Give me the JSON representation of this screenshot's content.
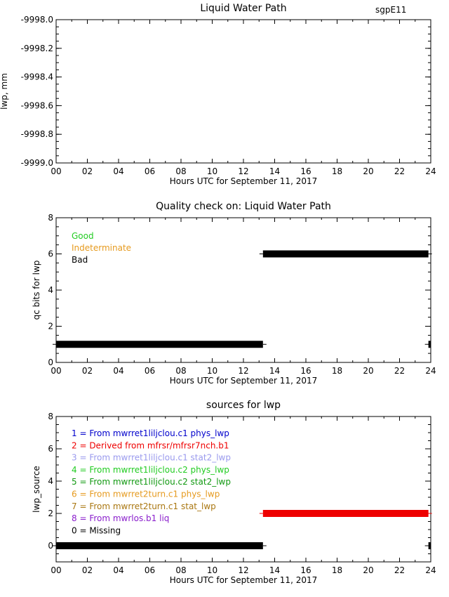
{
  "site": "sgpE11",
  "chart_data": [
    {
      "type": "line",
      "title": "Liquid Water Path",
      "xlabel": "Hours UTC for September 11, 2017",
      "ylabel": "lwp, mm",
      "xlim": [
        0,
        24
      ],
      "ylim": [
        -9999.0,
        -9998.0
      ],
      "x_ticks": [
        "00",
        "02",
        "04",
        "06",
        "08",
        "10",
        "12",
        "14",
        "16",
        "18",
        "20",
        "22",
        "24"
      ],
      "y_ticks": [
        "-9999.0",
        "-9998.8",
        "-9998.6",
        "-9998.4",
        "-9998.2",
        "-9998.0"
      ],
      "series": []
    },
    {
      "type": "bar",
      "title": "Quality check on: Liquid Water Path",
      "xlabel": "Hours UTC for September 11, 2017",
      "ylabel": "qc bits for lwp",
      "xlim": [
        0,
        24
      ],
      "ylim": [
        0,
        8
      ],
      "x_ticks": [
        "00",
        "02",
        "04",
        "06",
        "08",
        "10",
        "12",
        "14",
        "16",
        "18",
        "20",
        "22",
        "24"
      ],
      "y_ticks": [
        "0",
        "2",
        "4",
        "6",
        "8"
      ],
      "legend": [
        {
          "label": "Good",
          "color": "#22cc22"
        },
        {
          "label": "Indeterminate",
          "color": "#e69a1e"
        },
        {
          "label": "Bad",
          "color": "#000000"
        }
      ],
      "segments": [
        {
          "x_start": 0.0,
          "x_end": 13.25,
          "y": 1,
          "color": "#000000"
        },
        {
          "x_start": 13.25,
          "x_end": 23.85,
          "y": 6,
          "color": "#000000"
        },
        {
          "x_start": 23.85,
          "x_end": 24.0,
          "y": 1,
          "color": "#000000"
        }
      ]
    },
    {
      "type": "bar",
      "title": "sources for lwp",
      "xlabel": "Hours UTC for September 11, 2017",
      "ylabel": "lwp_source",
      "xlim": [
        0,
        24
      ],
      "ylim": [
        -1,
        8
      ],
      "x_ticks": [
        "00",
        "02",
        "04",
        "06",
        "08",
        "10",
        "12",
        "14",
        "16",
        "18",
        "20",
        "22",
        "24"
      ],
      "y_ticks": [
        "0",
        "2",
        "4",
        "6",
        "8"
      ],
      "legend": [
        {
          "label": "1 = From mwrret1liljclou.c1 phys_lwp",
          "color": "#0000cc"
        },
        {
          "label": "2 = Derived from mfrsr/mfrsr7nch.b1",
          "color": "#ee0000"
        },
        {
          "label": "3 = From mwrret1liljclou.c1 stat2_lwp",
          "color": "#9a9aee"
        },
        {
          "label": "4 = From mwrret1liljclou.c2 phys_lwp",
          "color": "#22cc22"
        },
        {
          "label": "5 = From mwrret1liljclou.c2 stat2_lwp",
          "color": "#119911"
        },
        {
          "label": "6 = From mwrret2turn.c1 phys_lwp",
          "color": "#e69a1e"
        },
        {
          "label": "7 = From mwrret2turn.c1 stat_lwp",
          "color": "#aa7711"
        },
        {
          "label": "8 = From mwrlos.b1 liq",
          "color": "#8a1ecc"
        },
        {
          "label": "0 = Missing",
          "color": "#000000"
        }
      ],
      "segments": [
        {
          "x_start": 0.0,
          "x_end": 13.25,
          "y": 0,
          "color": "#000000"
        },
        {
          "x_start": 13.25,
          "x_end": 23.85,
          "y": 2,
          "color": "#ee0000"
        },
        {
          "x_start": 23.85,
          "x_end": 24.0,
          "y": 0,
          "color": "#000000"
        }
      ]
    }
  ]
}
